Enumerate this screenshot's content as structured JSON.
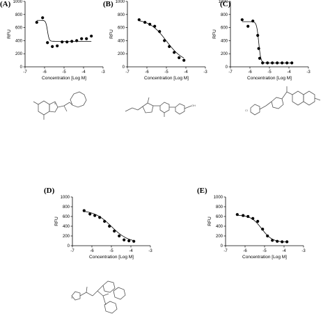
{
  "chart_data": [
    {
      "panel_label": "(A)",
      "type": "scatter",
      "xlabel": "Concentration [Log M]",
      "ylabel": "RFU",
      "xlim": [
        -7,
        -3
      ],
      "ylim": [
        0,
        1000
      ],
      "xticks": [
        "-7",
        "-6",
        "-5",
        "-4",
        "-3"
      ],
      "yticks": [
        "0",
        "200",
        "400",
        "600",
        "800",
        "1000"
      ],
      "x": [
        -6.4,
        -6.1,
        -5.85,
        -5.6,
        -5.35,
        -5.1,
        -4.85,
        -4.6,
        -4.35,
        -4.1,
        -3.85,
        -3.6
      ],
      "y": [
        680,
        750,
        370,
        310,
        320,
        380,
        380,
        390,
        400,
        430,
        430,
        470
      ],
      "fit": {
        "top": 710,
        "bottom": 390,
        "logIC50": -5.85,
        "hill": 10
      }
    },
    {
      "panel_label": "(B)",
      "type": "scatter",
      "xlabel": "Concentration [Log M]",
      "ylabel": "RFU",
      "xlim": [
        -7,
        -3
      ],
      "ylim": [
        0,
        1000
      ],
      "xticks": [
        "-7",
        "-6",
        "-5",
        "-4",
        "-3"
      ],
      "yticks": [
        "0",
        "200",
        "400",
        "600",
        "800",
        "1000"
      ],
      "x": [
        -6.4,
        -6.1,
        -5.85,
        -5.6,
        -5.35,
        -5.1,
        -4.85,
        -4.6,
        -4.35,
        -4.1
      ],
      "y": [
        720,
        680,
        650,
        620,
        540,
        400,
        310,
        220,
        140,
        100
      ],
      "fit": {
        "top": 730,
        "bottom": 60,
        "logIC50": -5.0,
        "hill": 1
      }
    },
    {
      "panel_label": "(C)",
      "type": "scatter",
      "xlabel": "Concentration [Log M]",
      "ylabel": "RFU",
      "xlim": [
        -7,
        -3
      ],
      "ylim": [
        0,
        1000
      ],
      "xticks": [
        "-7",
        "-6",
        "-5",
        "-4",
        "-3"
      ],
      "yticks": [
        "0",
        "200",
        "400",
        "600",
        "800",
        "1000"
      ],
      "x": [
        -6.4,
        -6.1,
        -5.85,
        -5.6,
        -5.55,
        -5.5,
        -5.35,
        -5.1,
        -4.85,
        -4.6,
        -4.35,
        -4.1,
        -3.85
      ],
      "y": [
        720,
        620,
        700,
        480,
        280,
        130,
        60,
        60,
        60,
        60,
        60,
        60,
        60
      ],
      "fit": {
        "top": 690,
        "bottom": 60,
        "logIC50": -5.55,
        "hill": 8
      }
    },
    {
      "panel_label": "(D)",
      "type": "scatter",
      "xlabel": "Concentration [Log M]",
      "ylabel": "RFU",
      "xlim": [
        -7,
        -3
      ],
      "ylim": [
        0,
        1000
      ],
      "xticks": [
        "-7",
        "-6",
        "-5",
        "-4",
        "-3"
      ],
      "yticks": [
        "0",
        "200",
        "400",
        "600",
        "800",
        "1000"
      ],
      "x": [
        -6.4,
        -6.1,
        -5.85,
        -5.6,
        -5.35,
        -5.1,
        -4.85,
        -4.6,
        -4.35,
        -4.1,
        -3.85
      ],
      "y": [
        720,
        650,
        620,
        580,
        500,
        400,
        300,
        200,
        120,
        100,
        90
      ],
      "fit": {
        "top": 730,
        "bottom": 60,
        "logIC50": -5.0,
        "hill": 1
      }
    },
    {
      "panel_label": "(E)",
      "type": "scatter",
      "xlabel": "Concentration [Log M]",
      "ylabel": "RFU",
      "xlim": [
        -7,
        -3
      ],
      "ylim": [
        0,
        1000
      ],
      "xticks": [
        "-7",
        "-6",
        "-5",
        "-4",
        "-3"
      ],
      "yticks": [
        "0",
        "200",
        "400",
        "600",
        "800",
        "1000"
      ],
      "x": [
        -6.4,
        -6.1,
        -5.85,
        -5.6,
        -5.35,
        -5.1,
        -4.85,
        -4.6,
        -4.35,
        -4.1,
        -3.85
      ],
      "y": [
        640,
        620,
        600,
        560,
        500,
        340,
        200,
        110,
        90,
        80,
        80
      ],
      "fit": {
        "top": 630,
        "bottom": 70,
        "logIC50": -5.15,
        "hill": 1.6
      }
    }
  ],
  "structures": [
    {
      "name": "structure-a-icon",
      "color": "#555555"
    },
    {
      "name": "structure-b-icon",
      "color": "#555555"
    },
    {
      "name": "structure-c-icon",
      "color": "#555555"
    },
    {
      "name": "structure-d-icon",
      "color": "#555555"
    }
  ]
}
